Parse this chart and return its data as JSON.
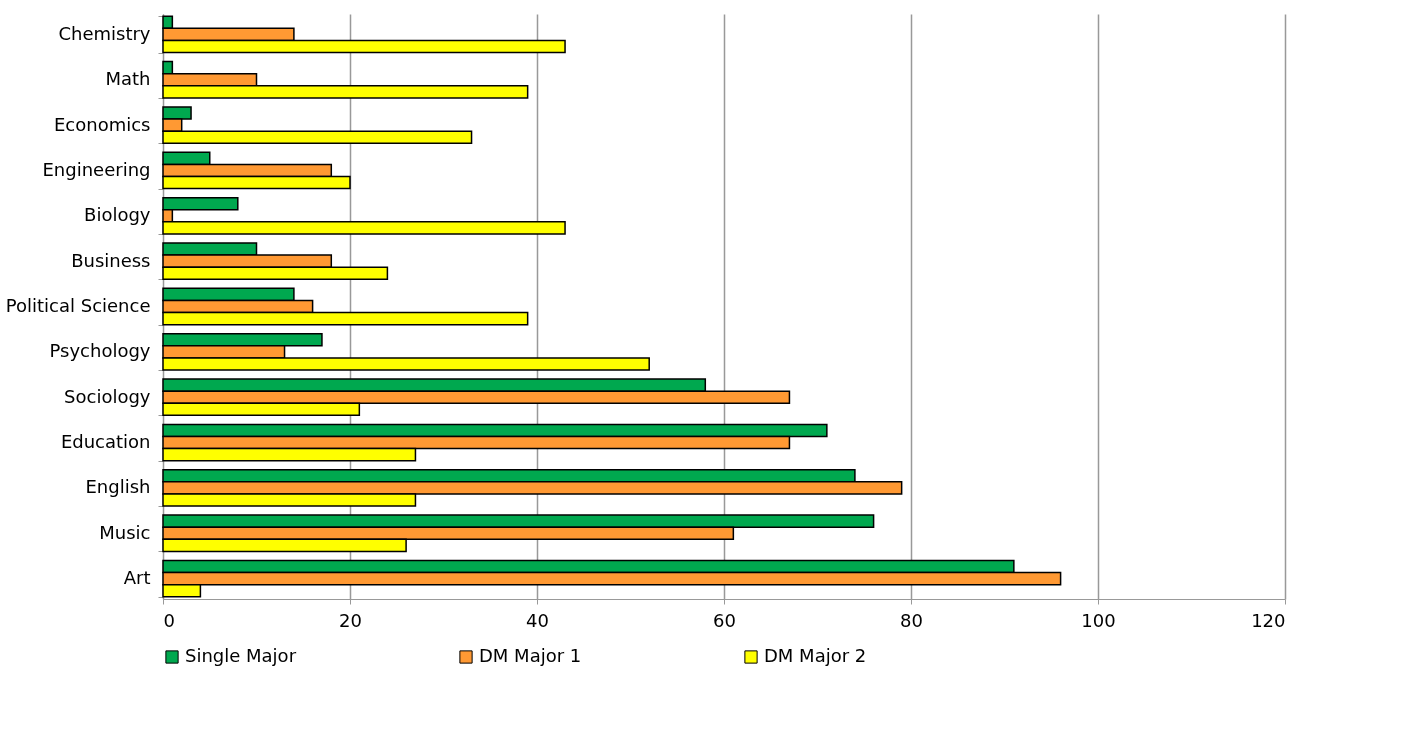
{
  "chart_data": {
    "type": "bar",
    "orientation": "horizontal",
    "categories": [
      "Chemistry",
      "Math",
      "Economics",
      "Engineering",
      "Biology",
      "Business",
      "Political Science",
      "Psychology",
      "Sociology",
      "Education",
      "English",
      "Music",
      "Art"
    ],
    "series": [
      {
        "name": "Single Major",
        "color": "#00a84f",
        "values": [
          1,
          1,
          3,
          5,
          8,
          10,
          14,
          17,
          58,
          71,
          74,
          76,
          91
        ]
      },
      {
        "name": "DM Major 1",
        "color": "#ff9933",
        "values": [
          14,
          10,
          2,
          18,
          1,
          18,
          16,
          13,
          67,
          67,
          79,
          61,
          96
        ]
      },
      {
        "name": "DM Major 2",
        "color": "#ffff00",
        "values": [
          43,
          39,
          33,
          20,
          43,
          24,
          39,
          52,
          21,
          27,
          27,
          26,
          4
        ]
      }
    ],
    "xlim": [
      0,
      120
    ],
    "xticks": [
      0,
      20,
      40,
      60,
      80,
      100,
      120
    ],
    "grid": "x",
    "legend": "bottom"
  }
}
